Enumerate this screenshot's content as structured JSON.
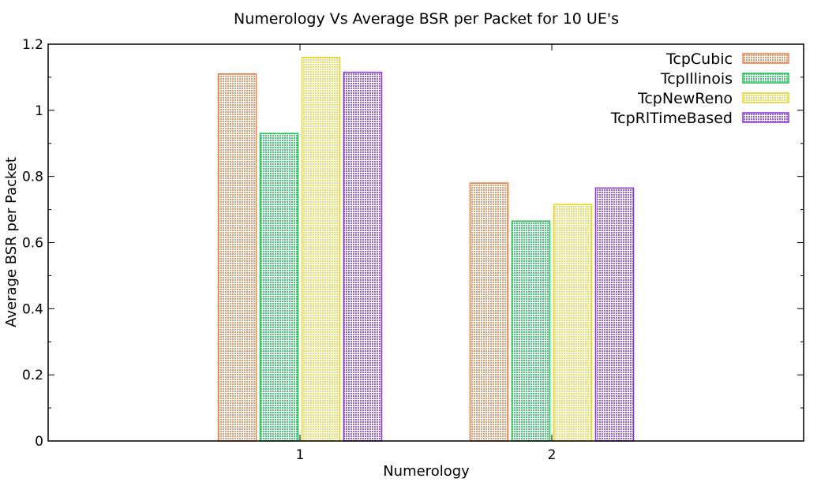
{
  "chart_data": {
    "type": "bar",
    "title": "Numerology Vs Average BSR per Packet for 10 UE's",
    "xlabel": "Numerology",
    "ylabel": "Average BSR per Packet",
    "categories": [
      "1",
      "2"
    ],
    "ylim": [
      0,
      1.2
    ],
    "yticks": [
      "0",
      "0.2",
      "0.4",
      "0.6",
      "0.8",
      "1",
      "1.2"
    ],
    "grid": false,
    "legend_position": "top-right",
    "series": [
      {
        "name": "TcpCubic",
        "values": [
          1.11,
          0.78
        ],
        "color": "#d9a077",
        "edge": "#f47a3a"
      },
      {
        "name": "TcpIllinois",
        "values": [
          0.93,
          0.665
        ],
        "color": "#46c77a",
        "edge": "#1bbf4e"
      },
      {
        "name": "TcpNewReno",
        "values": [
          1.16,
          0.715
        ],
        "color": "#e2df6a",
        "edge": "#e9d41c"
      },
      {
        "name": "TcpRlTimeBased",
        "values": [
          1.115,
          0.765
        ],
        "color": "#9b62d6",
        "edge": "#8a2fe0"
      }
    ]
  }
}
